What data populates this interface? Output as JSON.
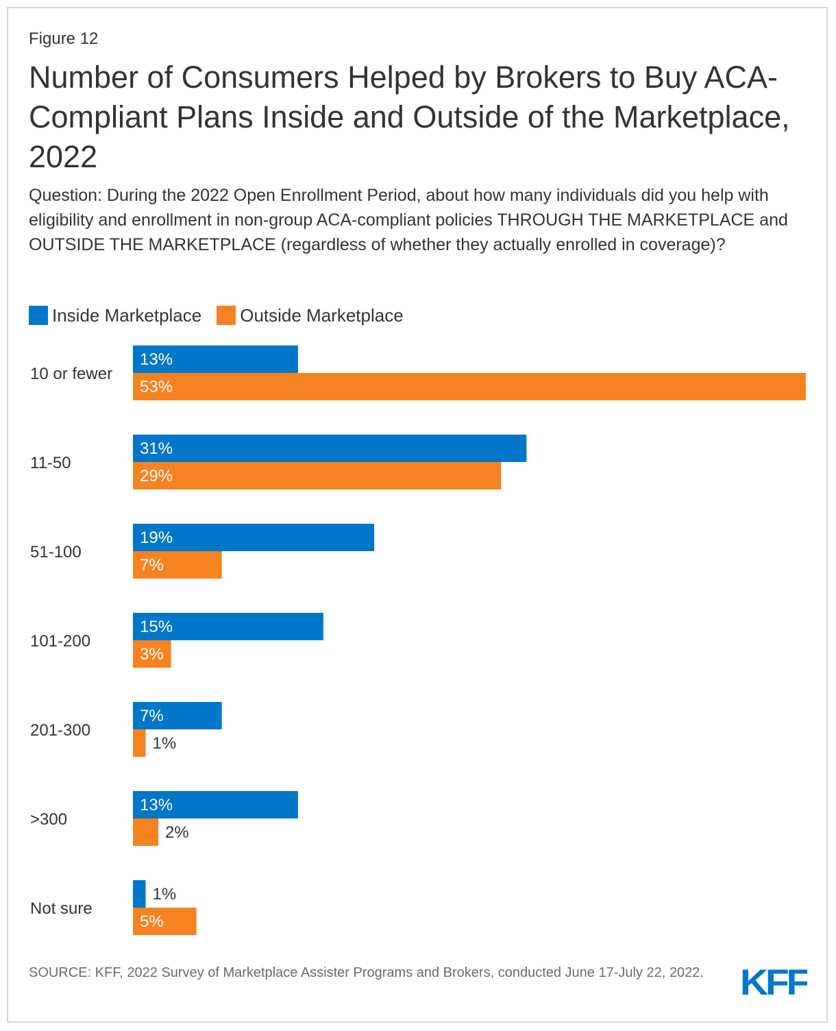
{
  "figure_label": "Figure 12",
  "title": "Number of Consumers Helped by Brokers to Buy ACA-Compliant Plans Inside and Outside of the Marketplace, 2022",
  "subtitle": "Question: During the 2022 Open Enrollment Period, about how many individuals did you help with eligibility and enrollment in non-group ACA-compliant policies THROUGH THE MARKETPLACE and OUTSIDE THE MARKETPLACE (regardless of whether they actually enrolled in coverage)?",
  "source": "SOURCE: KFF, 2022 Survey of Marketplace Assister Programs and Brokers, conducted June 17-July 22, 2022.",
  "logo_text": "KFF",
  "colors": {
    "inside": "#0077c8",
    "outside": "#f58220",
    "logo": "#0077c8"
  },
  "chart_data": {
    "type": "bar",
    "orientation": "horizontal",
    "categories": [
      "10 or fewer",
      "11-50",
      "51-100",
      "101-200",
      "201-300",
      ">300",
      "Not sure"
    ],
    "series": [
      {
        "name": "Inside Marketplace",
        "values": [
          13,
          31,
          19,
          15,
          7,
          13,
          1
        ],
        "labels": [
          "13%",
          "31%",
          "19%",
          "15%",
          "7%",
          "13%",
          "1%"
        ]
      },
      {
        "name": "Outside Marketplace",
        "values": [
          53,
          29,
          7,
          3,
          1,
          2,
          5
        ],
        "labels": [
          "53%",
          "29%",
          "7%",
          "3%",
          "1%",
          "2%",
          "5%"
        ]
      }
    ],
    "xlim": [
      0,
      53
    ],
    "unit": "%",
    "legend": "top-left",
    "grid": false
  }
}
